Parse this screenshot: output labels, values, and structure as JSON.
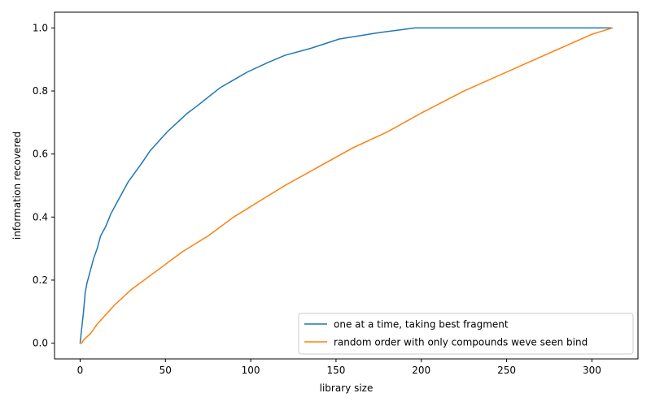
{
  "chart_data": {
    "type": "line",
    "xlabel": "library size",
    "ylabel": "information recovered",
    "xlim": [
      -15,
      327
    ],
    "ylim": [
      -0.05,
      1.05
    ],
    "xticks": [
      0,
      50,
      100,
      150,
      200,
      250,
      300
    ],
    "yticks": [
      0.0,
      0.2,
      0.4,
      0.6,
      0.8,
      1.0
    ],
    "xtick_labels": [
      "0",
      "50",
      "100",
      "150",
      "200",
      "250",
      "300"
    ],
    "ytick_labels": [
      "0.0",
      "0.2",
      "0.4",
      "0.6",
      "0.8",
      "1.0"
    ],
    "grid": false,
    "legend_position": "bottom-right",
    "series": [
      {
        "name": "one at a time, taking best fragment",
        "color": "#1f77b4",
        "x": [
          0,
          1,
          2,
          3,
          4,
          6,
          8,
          10,
          12,
          15,
          18,
          21,
          24,
          28,
          32,
          36,
          41,
          46,
          51,
          57,
          63,
          68,
          75,
          82,
          90,
          98,
          110,
          120,
          135,
          152,
          175,
          196,
          220,
          250,
          280,
          311
        ],
        "y": [
          0.0,
          0.05,
          0.1,
          0.16,
          0.19,
          0.23,
          0.27,
          0.3,
          0.34,
          0.37,
          0.41,
          0.44,
          0.47,
          0.51,
          0.54,
          0.57,
          0.61,
          0.64,
          0.67,
          0.7,
          0.73,
          0.75,
          0.78,
          0.81,
          0.835,
          0.86,
          0.89,
          0.913,
          0.935,
          0.965,
          0.985,
          1.0,
          1.0,
          1.0,
          1.0,
          1.0
        ]
      },
      {
        "name": "random order with only compounds weve seen bind",
        "color": "#ff7f0e",
        "x": [
          0,
          1,
          2,
          4,
          6,
          10,
          15,
          20,
          30,
          40,
          50,
          60,
          75,
          90,
          105,
          120,
          140,
          160,
          180,
          200,
          225,
          250,
          275,
          300,
          312
        ],
        "y": [
          0.0,
          0.0,
          0.01,
          0.02,
          0.03,
          0.06,
          0.09,
          0.12,
          0.17,
          0.21,
          0.25,
          0.29,
          0.34,
          0.4,
          0.45,
          0.5,
          0.56,
          0.62,
          0.67,
          0.73,
          0.8,
          0.86,
          0.92,
          0.98,
          1.0
        ]
      }
    ]
  }
}
